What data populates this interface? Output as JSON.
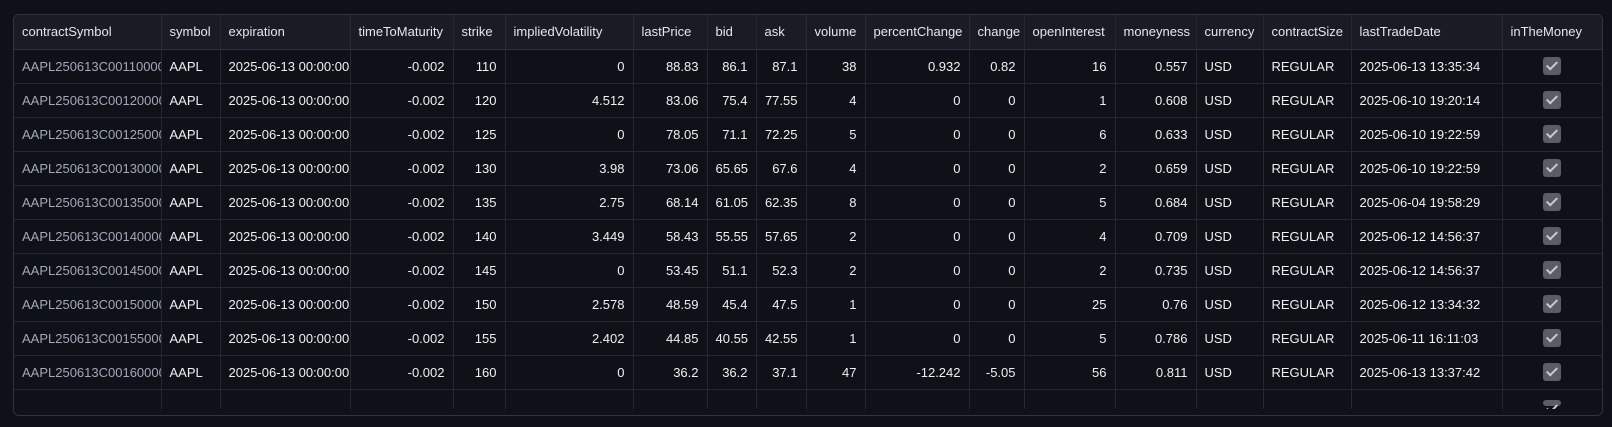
{
  "columns": [
    "contractSymbol",
    "symbol",
    "expiration",
    "timeToMaturity",
    "strike",
    "impliedVolatility",
    "lastPrice",
    "bid",
    "ask",
    "volume",
    "percentChange",
    "change",
    "openInterest",
    "moneyness",
    "currency",
    "contractSize",
    "lastTradeDate",
    "inTheMoney"
  ],
  "rows": [
    {
      "contractSymbol": "AAPL250613C00110000",
      "symbol": "AAPL",
      "expiration": "2025-06-13 00:00:00",
      "timeToMaturity": "-0.002",
      "strike": "110",
      "impliedVolatility": "0",
      "lastPrice": "88.83",
      "bid": "86.1",
      "ask": "87.1",
      "volume": "38",
      "percentChange": "0.932",
      "change": "0.82",
      "openInterest": "16",
      "moneyness": "0.557",
      "currency": "USD",
      "contractSize": "REGULAR",
      "lastTradeDate": "2025-06-13 13:35:34",
      "inTheMoney": true
    },
    {
      "contractSymbol": "AAPL250613C00120000",
      "symbol": "AAPL",
      "expiration": "2025-06-13 00:00:00",
      "timeToMaturity": "-0.002",
      "strike": "120",
      "impliedVolatility": "4.512",
      "lastPrice": "83.06",
      "bid": "75.4",
      "ask": "77.55",
      "volume": "4",
      "percentChange": "0",
      "change": "0",
      "openInterest": "1",
      "moneyness": "0.608",
      "currency": "USD",
      "contractSize": "REGULAR",
      "lastTradeDate": "2025-06-10 19:20:14",
      "inTheMoney": true
    },
    {
      "contractSymbol": "AAPL250613C00125000",
      "symbol": "AAPL",
      "expiration": "2025-06-13 00:00:00",
      "timeToMaturity": "-0.002",
      "strike": "125",
      "impliedVolatility": "0",
      "lastPrice": "78.05",
      "bid": "71.1",
      "ask": "72.25",
      "volume": "5",
      "percentChange": "0",
      "change": "0",
      "openInterest": "6",
      "moneyness": "0.633",
      "currency": "USD",
      "contractSize": "REGULAR",
      "lastTradeDate": "2025-06-10 19:22:59",
      "inTheMoney": true
    },
    {
      "contractSymbol": "AAPL250613C00130000",
      "symbol": "AAPL",
      "expiration": "2025-06-13 00:00:00",
      "timeToMaturity": "-0.002",
      "strike": "130",
      "impliedVolatility": "3.98",
      "lastPrice": "73.06",
      "bid": "65.65",
      "ask": "67.6",
      "volume": "4",
      "percentChange": "0",
      "change": "0",
      "openInterest": "2",
      "moneyness": "0.659",
      "currency": "USD",
      "contractSize": "REGULAR",
      "lastTradeDate": "2025-06-10 19:22:59",
      "inTheMoney": true
    },
    {
      "contractSymbol": "AAPL250613C00135000",
      "symbol": "AAPL",
      "expiration": "2025-06-13 00:00:00",
      "timeToMaturity": "-0.002",
      "strike": "135",
      "impliedVolatility": "2.75",
      "lastPrice": "68.14",
      "bid": "61.05",
      "ask": "62.35",
      "volume": "8",
      "percentChange": "0",
      "change": "0",
      "openInterest": "5",
      "moneyness": "0.684",
      "currency": "USD",
      "contractSize": "REGULAR",
      "lastTradeDate": "2025-06-04 19:58:29",
      "inTheMoney": true
    },
    {
      "contractSymbol": "AAPL250613C00140000",
      "symbol": "AAPL",
      "expiration": "2025-06-13 00:00:00",
      "timeToMaturity": "-0.002",
      "strike": "140",
      "impliedVolatility": "3.449",
      "lastPrice": "58.43",
      "bid": "55.55",
      "ask": "57.65",
      "volume": "2",
      "percentChange": "0",
      "change": "0",
      "openInterest": "4",
      "moneyness": "0.709",
      "currency": "USD",
      "contractSize": "REGULAR",
      "lastTradeDate": "2025-06-12 14:56:37",
      "inTheMoney": true
    },
    {
      "contractSymbol": "AAPL250613C00145000",
      "symbol": "AAPL",
      "expiration": "2025-06-13 00:00:00",
      "timeToMaturity": "-0.002",
      "strike": "145",
      "impliedVolatility": "0",
      "lastPrice": "53.45",
      "bid": "51.1",
      "ask": "52.3",
      "volume": "2",
      "percentChange": "0",
      "change": "0",
      "openInterest": "2",
      "moneyness": "0.735",
      "currency": "USD",
      "contractSize": "REGULAR",
      "lastTradeDate": "2025-06-12 14:56:37",
      "inTheMoney": true
    },
    {
      "contractSymbol": "AAPL250613C00150000",
      "symbol": "AAPL",
      "expiration": "2025-06-13 00:00:00",
      "timeToMaturity": "-0.002",
      "strike": "150",
      "impliedVolatility": "2.578",
      "lastPrice": "48.59",
      "bid": "45.4",
      "ask": "47.5",
      "volume": "1",
      "percentChange": "0",
      "change": "0",
      "openInterest": "25",
      "moneyness": "0.76",
      "currency": "USD",
      "contractSize": "REGULAR",
      "lastTradeDate": "2025-06-12 13:34:32",
      "inTheMoney": true
    },
    {
      "contractSymbol": "AAPL250613C00155000",
      "symbol": "AAPL",
      "expiration": "2025-06-13 00:00:00",
      "timeToMaturity": "-0.002",
      "strike": "155",
      "impliedVolatility": "2.402",
      "lastPrice": "44.85",
      "bid": "40.55",
      "ask": "42.55",
      "volume": "1",
      "percentChange": "0",
      "change": "0",
      "openInterest": "5",
      "moneyness": "0.786",
      "currency": "USD",
      "contractSize": "REGULAR",
      "lastTradeDate": "2025-06-11 16:11:03",
      "inTheMoney": true
    },
    {
      "contractSymbol": "AAPL250613C00160000",
      "symbol": "AAPL",
      "expiration": "2025-06-13 00:00:00",
      "timeToMaturity": "-0.002",
      "strike": "160",
      "impliedVolatility": "0",
      "lastPrice": "36.2",
      "bid": "36.2",
      "ask": "37.1",
      "volume": "47",
      "percentChange": "-12.242",
      "change": "-5.05",
      "openInterest": "56",
      "moneyness": "0.811",
      "currency": "USD",
      "contractSize": "REGULAR",
      "lastTradeDate": "2025-06-13 13:37:42",
      "inTheMoney": true
    }
  ],
  "colors": {
    "background": "#0e1117",
    "header": "#1a1c24",
    "grid": "#262730"
  },
  "icons": {
    "inTheMoney": "checkbox-checked-icon"
  }
}
